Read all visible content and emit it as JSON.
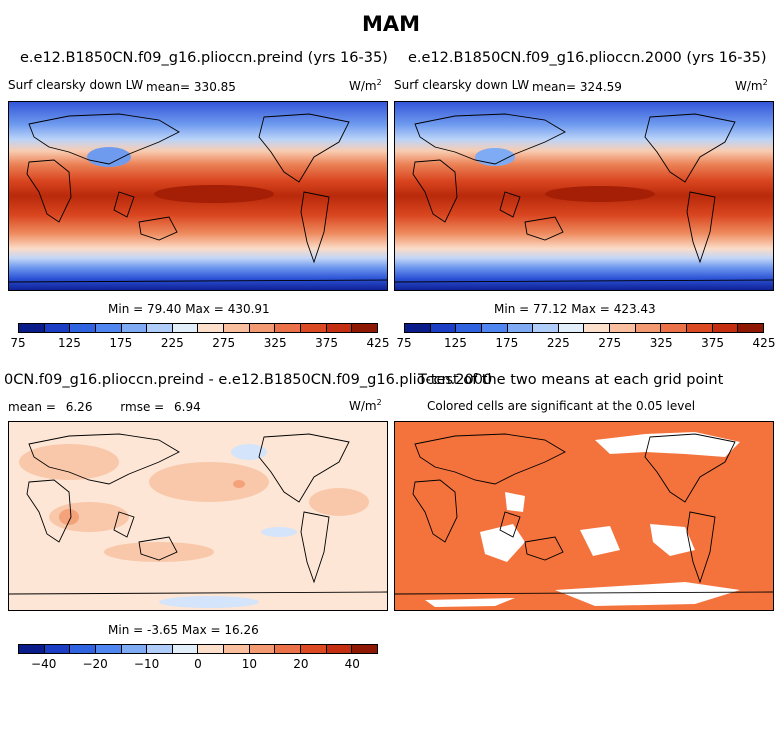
{
  "figure_title": "MAM",
  "chart_data": [
    {
      "type": "heatmap",
      "title": "e.e12.B1850CN.f09_g16.plioccn.preind (yrs 16-35)",
      "variable": "Surf clearsky down LW",
      "units": "W/m",
      "units_exp": "2",
      "mean_label": "mean=",
      "mean": "330.85",
      "min_label": "Min =",
      "min": "79.40",
      "max_label": "Max =",
      "max": "430.91",
      "colorbar_ticks": [
        "75",
        "125",
        "175",
        "225",
        "275",
        "325",
        "375",
        "425"
      ],
      "colorbar_colors": [
        "#0a1b8a",
        "#1b3ec4",
        "#2f63e0",
        "#4f86f0",
        "#7fabf5",
        "#afcdf8",
        "#e3eefb",
        "#fde0cc",
        "#f9bf9e",
        "#f39a72",
        "#ea7148",
        "#dc4a24",
        "#c32f10",
        "#8f1805"
      ]
    },
    {
      "type": "heatmap",
      "title": "e.e12.B1850CN.f09_g16.plioccn.2000 (yrs 16-35)",
      "variable": "Surf clearsky down LW",
      "units": "W/m",
      "units_exp": "2",
      "mean_label": "mean=",
      "mean": "324.59",
      "min_label": "Min =",
      "min": "77.12",
      "max_label": "Max =",
      "max": "423.43",
      "colorbar_ticks": [
        "75",
        "125",
        "175",
        "225",
        "275",
        "325",
        "375",
        "425"
      ],
      "colorbar_colors": [
        "#0a1b8a",
        "#1b3ec4",
        "#2f63e0",
        "#4f86f0",
        "#7fabf5",
        "#afcdf8",
        "#e3eefb",
        "#fde0cc",
        "#f9bf9e",
        "#f39a72",
        "#ea7148",
        "#dc4a24",
        "#c32f10",
        "#8f1805"
      ]
    },
    {
      "type": "heatmap",
      "title": "0CN.f09_g16.plioccn.preind - e.e12.B1850CN.f09_g16.plioccn.2000",
      "units": "W/m",
      "units_exp": "2",
      "mean_label": "mean =",
      "mean": "6.26",
      "rmse_label": "rmse =",
      "rmse": "6.94",
      "min_label": "Min =",
      "min": "-3.65",
      "max_label": "Max =",
      "max": "16.26",
      "colorbar_ticks": [
        "−40",
        "−20",
        "−10",
        "0",
        "10",
        "20",
        "40"
      ],
      "colorbar_colors": [
        "#0a1b8a",
        "#1b3ec4",
        "#2f63e0",
        "#4f86f0",
        "#7fabf5",
        "#afcdf8",
        "#e3eefb",
        "#fde0cc",
        "#f9bf9e",
        "#f39a72",
        "#ea7148",
        "#dc4a24",
        "#c32f10",
        "#8f1805"
      ]
    },
    {
      "type": "heatmap",
      "title": "T-test of the two means at each grid point",
      "subtitle": "Colored cells are significant at the 0.05 level",
      "significant_color": "#f4733c"
    }
  ]
}
